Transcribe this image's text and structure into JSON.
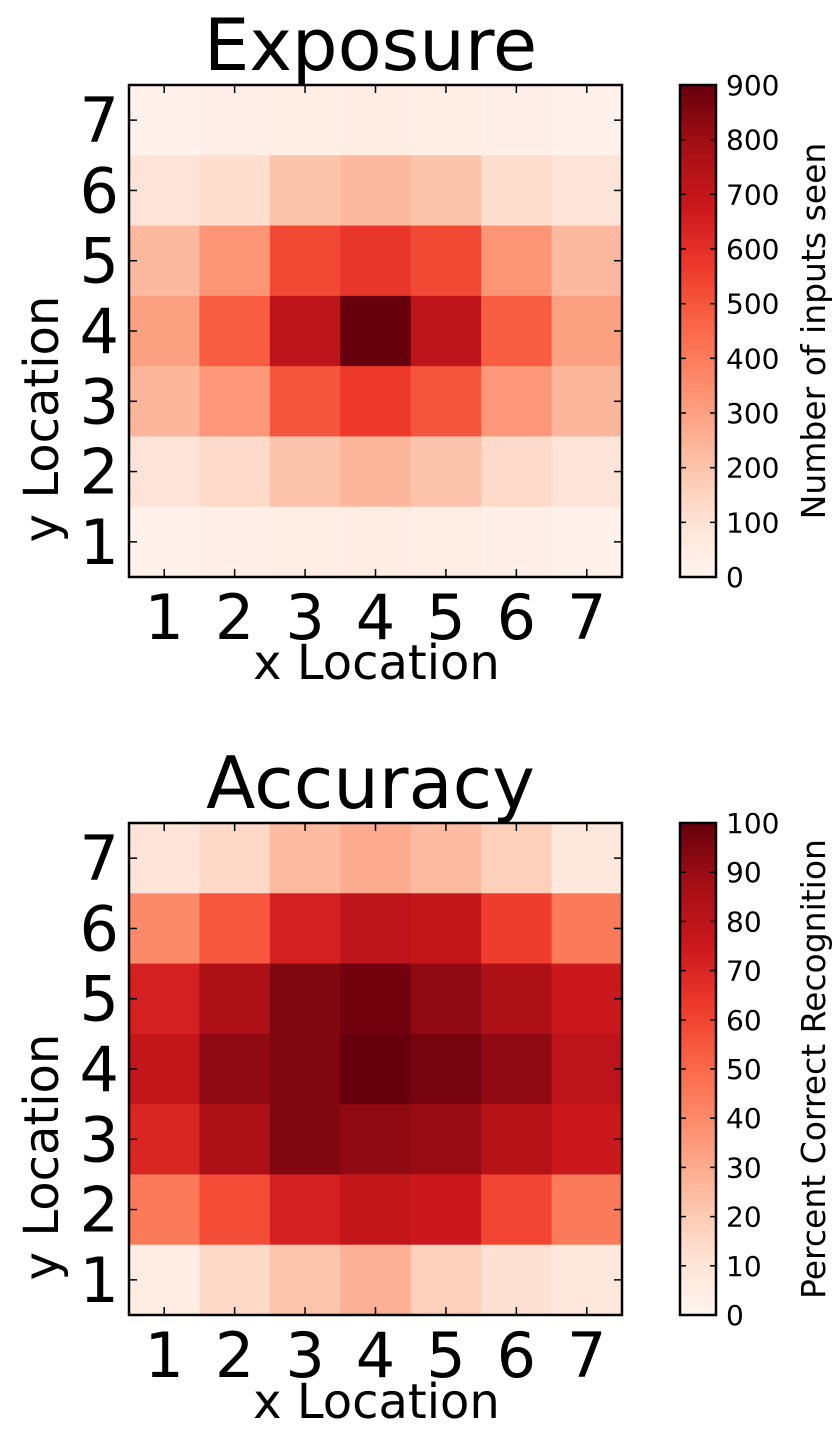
{
  "chart_data": [
    {
      "type": "heatmap",
      "title": "Exposure",
      "xlabel": "x Location",
      "ylabel": "y Location",
      "x_categories": [
        "1",
        "2",
        "3",
        "4",
        "5",
        "6",
        "7"
      ],
      "y_categories": [
        "1",
        "2",
        "3",
        "4",
        "5",
        "6",
        "7"
      ],
      "rows_top_to_bottom_y": [
        "7",
        "6",
        "5",
        "4",
        "3",
        "2",
        "1"
      ],
      "values": [
        [
          20,
          35,
          40,
          45,
          40,
          30,
          20
        ],
        [
          90,
          120,
          200,
          230,
          200,
          120,
          90
        ],
        [
          230,
          330,
          530,
          580,
          530,
          330,
          230
        ],
        [
          300,
          480,
          720,
          900,
          720,
          480,
          300
        ],
        [
          240,
          320,
          500,
          570,
          500,
          320,
          240
        ],
        [
          90,
          130,
          200,
          240,
          200,
          130,
          90
        ],
        [
          20,
          30,
          40,
          45,
          40,
          30,
          20
        ]
      ],
      "vmin": 0,
      "vmax": 900,
      "colormap": "Reds",
      "colorbar": {
        "label": "Number of inputs seen",
        "ticks": [
          "0",
          "100",
          "200",
          "300",
          "400",
          "500",
          "600",
          "700",
          "800",
          "900"
        ]
      }
    },
    {
      "type": "heatmap",
      "title": "Accuracy",
      "xlabel": "x Location",
      "ylabel": "y Location",
      "x_categories": [
        "1",
        "2",
        "3",
        "4",
        "5",
        "6",
        "7"
      ],
      "y_categories": [
        "1",
        "2",
        "3",
        "4",
        "5",
        "6",
        "7"
      ],
      "rows_top_to_bottom_y": [
        "7",
        "6",
        "5",
        "4",
        "3",
        "2",
        "1"
      ],
      "values": [
        [
          10,
          15,
          25,
          30,
          25,
          18,
          8
        ],
        [
          40,
          55,
          72,
          80,
          78,
          62,
          45
        ],
        [
          72,
          85,
          95,
          98,
          92,
          85,
          75
        ],
        [
          78,
          92,
          95,
          100,
          97,
          92,
          80
        ],
        [
          70,
          85,
          95,
          92,
          90,
          82,
          75
        ],
        [
          45,
          58,
          72,
          78,
          75,
          60,
          45
        ],
        [
          5,
          15,
          22,
          28,
          18,
          12,
          8
        ]
      ],
      "vmin": 0,
      "vmax": 100,
      "colormap": "Reds",
      "colorbar": {
        "label": "Percent Correct Recognition",
        "ticks": [
          "0",
          "10",
          "20",
          "30",
          "40",
          "50",
          "60",
          "70",
          "80",
          "90",
          "100"
        ]
      }
    }
  ]
}
